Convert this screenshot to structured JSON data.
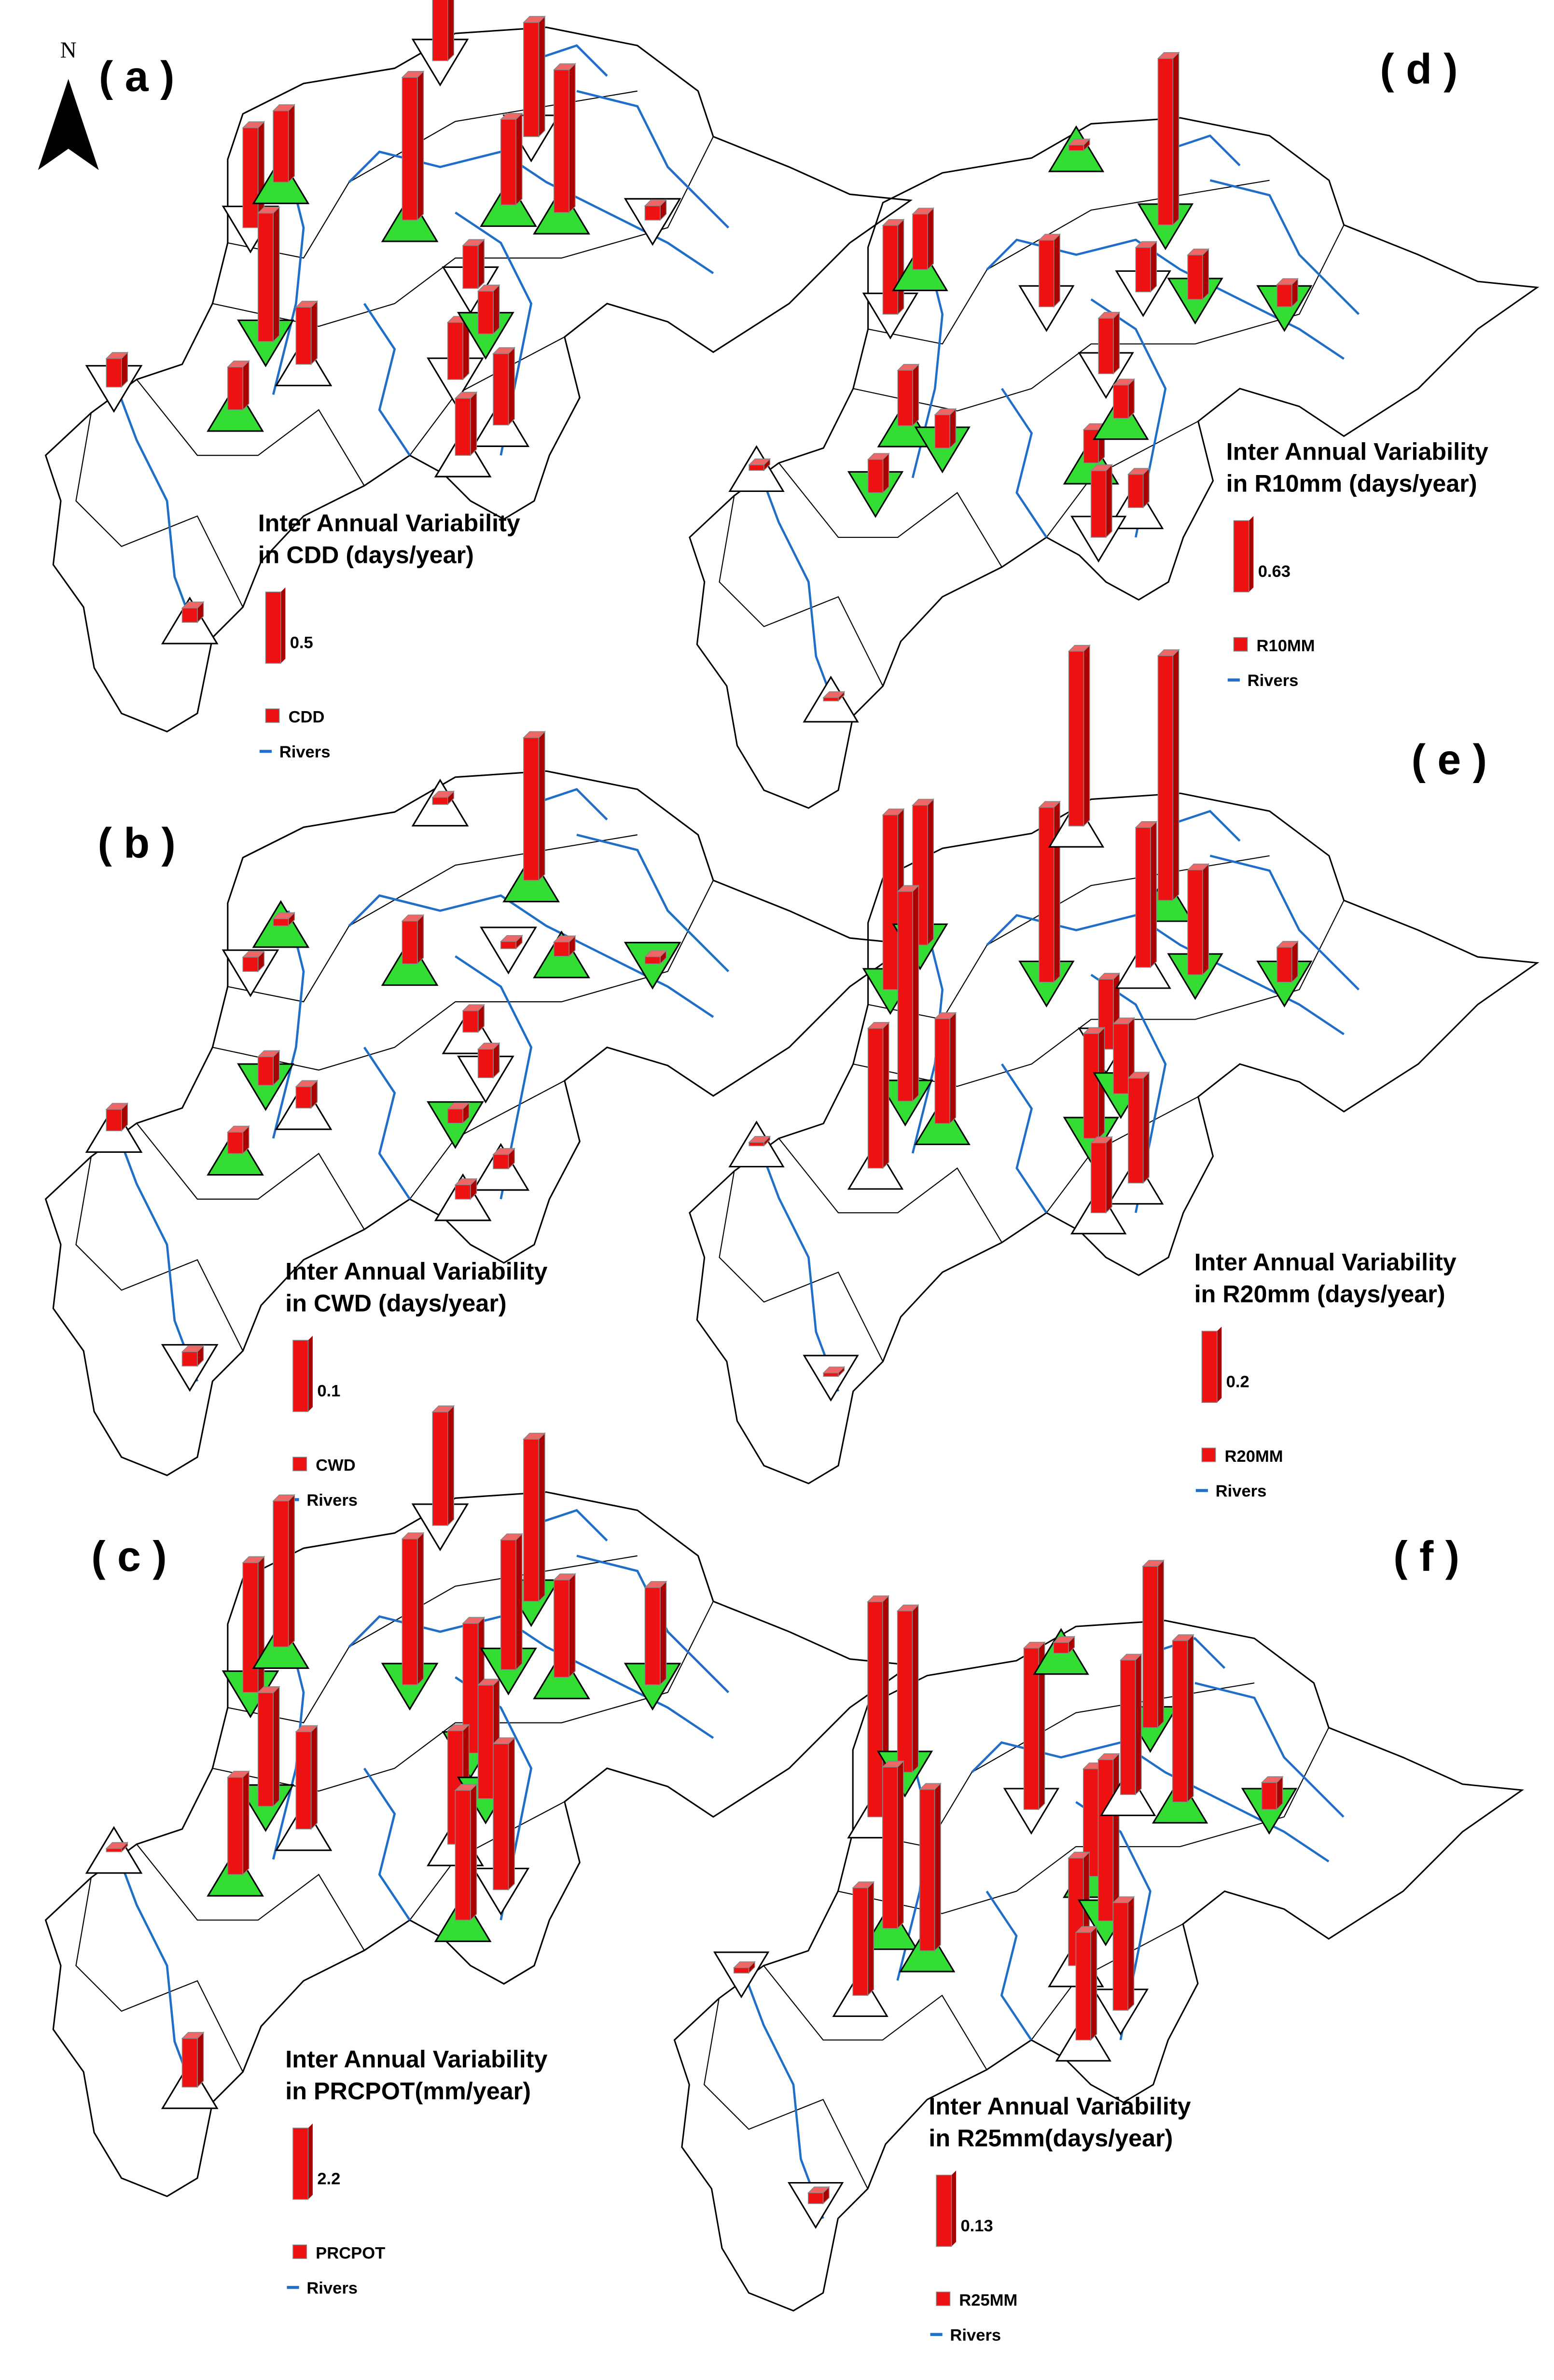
{
  "north": "N",
  "panels": [
    {
      "label": "( a )",
      "title_line1": "Inter Annual Variability",
      "title_line2": "in CDD (days/year)",
      "legend_value": 0.5,
      "legend_name": "CDD",
      "rivers_label": "Rivers",
      "stations": [
        0.2,
        0.1,
        0.7,
        0.5,
        0.9,
        0.3,
        0.4,
        1.0,
        1.0,
        0.3,
        0.4,
        0.3,
        0.8,
        1.0,
        0.5,
        0.4,
        0.1,
        0.6
      ]
    },
    {
      "label": "( b )",
      "title_line1": "Inter Annual Variability",
      "title_line2": "in CWD (days/year)",
      "legend_value": 0.1,
      "legend_name": "CWD",
      "rivers_label": "Rivers",
      "stations": [
        0.03,
        0.02,
        0.02,
        0.01,
        0.04,
        0.03,
        0.03,
        0.06,
        0.01,
        0.03,
        0.02,
        0.04,
        0.2,
        0.02,
        0.02,
        0.02,
        0.01,
        0.01
      ]
    },
    {
      "label": "( c )",
      "title_line1": "Inter Annual Variability",
      "title_line2": "in PRCPOT(mm/year)",
      "legend_value": 2.2,
      "legend_name": "PRCPOT",
      "rivers_label": "Rivers",
      "stations": [
        0.1,
        1.5,
        4.0,
        4.5,
        3.5,
        3.0,
        3.0,
        4.5,
        3.5,
        4.0,
        3.5,
        3.5,
        5.0,
        3.0,
        4.5,
        4.0,
        3.0,
        4.0
      ]
    },
    {
      "label": "( d )",
      "title_line1": "Inter Annual Variability",
      "title_line2": "in R10mm (days/year)",
      "legend_value": 0.63,
      "legend_name": "R10MM",
      "rivers_label": "Rivers",
      "stations": [
        0.05,
        0.03,
        0.8,
        0.5,
        0.5,
        0.3,
        0.3,
        0.6,
        0.05,
        0.5,
        0.3,
        0.3,
        1.5,
        0.4,
        0.3,
        0.6,
        0.2,
        0.4
      ]
    },
    {
      "label": "( e )",
      "title_line1": "Inter Annual Variability",
      "title_line2": "in R20mm (days/year)",
      "legend_value": 0.2,
      "legend_name": "R20MM",
      "rivers_label": "Rivers",
      "stations": [
        0.01,
        0.01,
        0.5,
        0.4,
        0.6,
        0.4,
        0.3,
        0.5,
        0.5,
        0.2,
        0.3,
        0.2,
        0.7,
        0.3,
        0.3,
        0.2,
        0.1,
        0.4
      ]
    },
    {
      "label": "( f )",
      "title_line1": "Inter Annual Variability",
      "title_line2": "in R25mm(days/year)",
      "legend_value": 0.13,
      "legend_name": "R25MM",
      "rivers_label": "Rivers",
      "stations": [
        0.01,
        0.02,
        0.4,
        0.3,
        0.3,
        0.2,
        0.3,
        0.3,
        0.02,
        0.2,
        0.2,
        0.3,
        0.3,
        0.3,
        0.2,
        0.2,
        0.05,
        0.25
      ]
    }
  ]
}
